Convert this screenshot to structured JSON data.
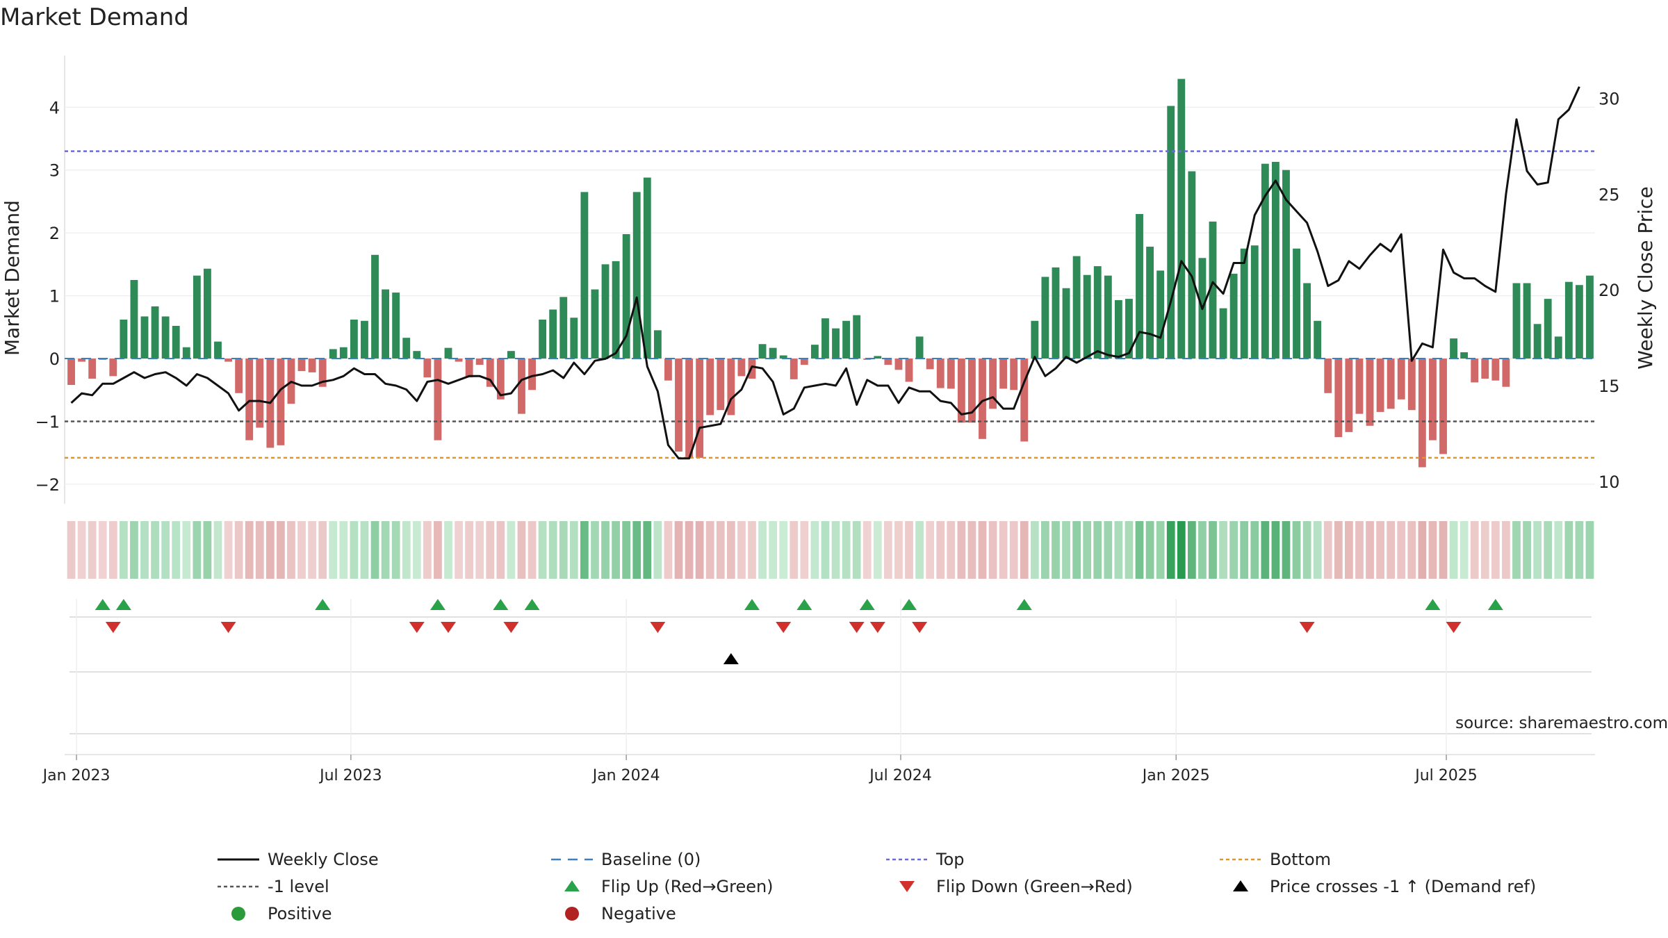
{
  "chart_data": {
    "type": "bar",
    "title": "Market Demand",
    "ylabel": "Market Demand",
    "y2label": "Weekly Close Price",
    "ylim": [
      -2.2,
      4.6
    ],
    "y2lim": [
      9.2,
      31.5
    ],
    "yticks": [
      {
        "v": 4,
        "l": "4"
      },
      {
        "v": 3,
        "l": "3"
      },
      {
        "v": 2,
        "l": "2"
      },
      {
        "v": 1,
        "l": "1"
      },
      {
        "v": 0,
        "l": "0"
      },
      {
        "v": -1,
        "l": "−1"
      },
      {
        "v": -2,
        "l": "−2"
      }
    ],
    "y2ticks": [
      {
        "v": 30,
        "l": "30"
      },
      {
        "v": 25,
        "l": "25"
      },
      {
        "v": 20,
        "l": "20"
      },
      {
        "v": 15,
        "l": "15"
      },
      {
        "v": 10,
        "l": "10"
      }
    ],
    "xticks": [
      {
        "i": 0.5,
        "l": "Jan 2023"
      },
      {
        "i": 26.7,
        "l": "Jul 2023"
      },
      {
        "i": 53,
        "l": "Jan 2024"
      },
      {
        "i": 79.2,
        "l": "Jul 2024"
      },
      {
        "i": 105.5,
        "l": "Jan 2025"
      },
      {
        "i": 131.3,
        "l": "Jul 2025"
      }
    ],
    "top_level": 3.3,
    "bottom_level": -1.58,
    "minus_one_level": -1,
    "demand": [
      -0.42,
      -0.05,
      -0.32,
      -0.02,
      -0.28,
      0.62,
      1.25,
      0.67,
      0.83,
      0.67,
      0.52,
      0.18,
      1.32,
      1.43,
      0.27,
      -0.05,
      -0.55,
      -1.3,
      -1.1,
      -1.42,
      -1.38,
      -0.72,
      -0.2,
      -0.22,
      -0.45,
      0.15,
      0.18,
      0.62,
      0.6,
      1.65,
      1.1,
      1.05,
      0.33,
      0.12,
      -0.3,
      -1.3,
      0.17,
      -0.05,
      -0.3,
      -0.1,
      -0.45,
      -0.65,
      0.12,
      -0.88,
      -0.5,
      0.62,
      0.78,
      0.98,
      0.65,
      2.65,
      1.1,
      1.5,
      1.55,
      1.98,
      2.65,
      2.88,
      0.45,
      -0.35,
      -1.48,
      -1.58,
      -1.58,
      -0.9,
      -0.82,
      -0.9,
      -0.28,
      -0.32,
      0.23,
      0.17,
      0.05,
      -0.33,
      -0.1,
      0.22,
      0.64,
      0.48,
      0.6,
      0.69,
      -0.02,
      0.04,
      -0.1,
      -0.18,
      -0.37,
      0.35,
      -0.17,
      -0.47,
      -0.48,
      -1.02,
      -1.02,
      -1.28,
      -0.8,
      -0.48,
      -0.5,
      -1.32,
      0.6,
      1.3,
      1.45,
      1.12,
      1.63,
      1.33,
      1.47,
      1.32,
      0.93,
      0.95,
      2.3,
      1.78,
      1.4,
      4.02,
      4.45,
      2.98,
      1.6,
      2.18,
      0.8,
      1.35,
      1.75,
      1.8,
      3.1,
      3.13,
      3.0,
      1.75,
      1.2,
      0.6,
      -0.55,
      -1.25,
      -1.17,
      -0.88,
      -1.07,
      -0.85,
      -0.8,
      -0.65,
      -0.82,
      -1.73,
      -1.3,
      -1.52,
      0.32,
      0.1,
      -0.38,
      -0.32,
      -0.35,
      -0.45,
      1.2,
      1.2,
      0.55,
      0.95,
      0.35,
      1.22,
      1.17,
      1.32
    ],
    "close": [
      14.1,
      14.6,
      14.5,
      15.1,
      15.1,
      15.4,
      15.7,
      15.4,
      15.6,
      15.7,
      15.4,
      15.0,
      15.6,
      15.4,
      15.0,
      14.6,
      13.7,
      14.2,
      14.2,
      14.1,
      14.8,
      15.2,
      15.0,
      15.0,
      15.2,
      15.3,
      15.5,
      15.9,
      15.6,
      15.6,
      15.1,
      15.0,
      14.8,
      14.2,
      15.2,
      15.3,
      15.1,
      15.3,
      15.5,
      15.5,
      15.3,
      14.5,
      14.6,
      15.3,
      15.5,
      15.6,
      15.8,
      15.4,
      16.2,
      15.6,
      16.3,
      16.4,
      16.7,
      17.6,
      19.6,
      16.0,
      14.7,
      11.9,
      11.2,
      11.2,
      12.8,
      12.9,
      13.0,
      14.3,
      14.8,
      16.0,
      15.9,
      15.2,
      13.5,
      13.8,
      14.9,
      15.0,
      15.1,
      15.0,
      15.9,
      14.0,
      15.3,
      15.0,
      15.0,
      14.1,
      14.9,
      14.7,
      14.7,
      14.2,
      14.1,
      13.5,
      13.6,
      14.2,
      14.4,
      13.8,
      13.8,
      15.2,
      16.5,
      15.5,
      15.9,
      16.5,
      16.2,
      16.5,
      16.8,
      16.6,
      16.5,
      16.7,
      17.8,
      17.7,
      17.5,
      19.4,
      21.5,
      20.7,
      19.0,
      20.4,
      19.8,
      21.4,
      21.4,
      23.9,
      24.9,
      25.7,
      24.7,
      24.1,
      23.5,
      22.0,
      20.2,
      20.5,
      21.5,
      21.1,
      21.8,
      22.4,
      22.0,
      22.9,
      16.3,
      17.2,
      17.0,
      22.1,
      20.9,
      20.6,
      20.6,
      20.2,
      19.9,
      25.0,
      28.9,
      26.2,
      25.5,
      25.6,
      28.9,
      29.4,
      30.6
    ],
    "flip_up": [
      3,
      5,
      24,
      35,
      41,
      44,
      65,
      70,
      76,
      80,
      91,
      130,
      136
    ],
    "flip_down": [
      4,
      15,
      33,
      36,
      42,
      56,
      68,
      75,
      77,
      81,
      118,
      132
    ],
    "price_cross": [
      63
    ],
    "annotation": "source: sharemaestro.com",
    "legend": {
      "weekly_close": "Weekly Close",
      "baseline": "Baseline (0)",
      "top": "Top",
      "bottom": "Bottom",
      "minus_one": "-1 level",
      "flip_up": "Flip Up (Red→Green)",
      "flip_down": "Flip Down (Green→Red)",
      "price_cross": "Price crosses -1 ↑ (Demand ref)",
      "positive": "Positive",
      "negative": "Negative"
    },
    "colors": {
      "pos": "#2e8b57",
      "neg": "#cd5c5c",
      "line": "#111111",
      "top": "#6a6ad8",
      "bottom": "#e0962a",
      "minus_one": "#555555",
      "baseline": "#3a7fc0",
      "flip_up": "#2aa24a",
      "flip_down": "#d0312d",
      "cross": "#000000",
      "pos_dot": "#2a9a3a",
      "neg_dot": "#b22222"
    }
  }
}
